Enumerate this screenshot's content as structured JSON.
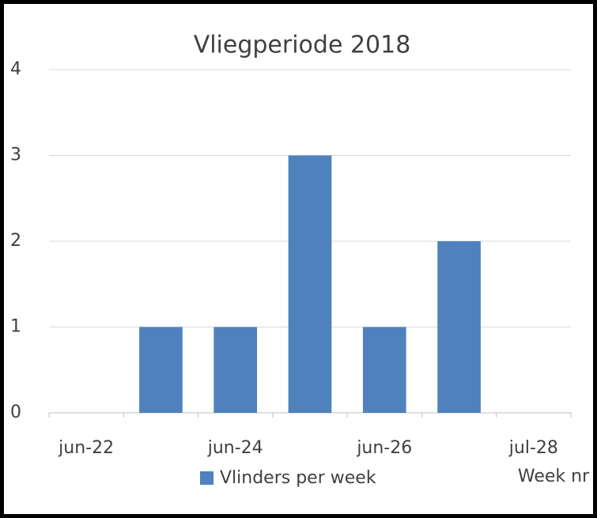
{
  "chart_data": {
    "type": "bar",
    "title": "Vliegperiode 2018",
    "categories": [
      "jun-22",
      null,
      "jun-24",
      null,
      "jun-26",
      null,
      "jul-28"
    ],
    "series": [
      {
        "name": "Vlinders per week",
        "color": "#4f81bd",
        "values": [
          0,
          1,
          1,
          3,
          1,
          2,
          0
        ]
      }
    ],
    "x_label": "Week nr",
    "ylim": [
      0,
      4
    ],
    "yticks": [
      0,
      1,
      2,
      3,
      4
    ],
    "grid": true,
    "legend": "bottom"
  }
}
